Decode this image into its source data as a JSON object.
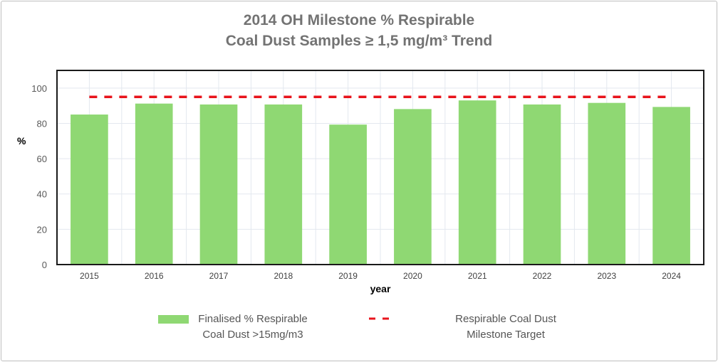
{
  "chart_data": {
    "type": "bar",
    "title_line1": "2014 OH Milestone % Respirable",
    "title_line2": "Coal Dust Samples ≥ 1,5 mg/m³ Trend",
    "xlabel": "year",
    "ylabel": "%",
    "categories": [
      "2015",
      "2016",
      "2017",
      "2018",
      "2019",
      "2020",
      "2021",
      "2022",
      "2023",
      "2024"
    ],
    "series": [
      {
        "name_line1": "Finalised % Respirable",
        "name_line2": "Coal Dust >15mg/m3",
        "type": "bar",
        "color": "#8fd873",
        "values": [
          85,
          91.2,
          90.7,
          90.7,
          79.3,
          88.1,
          93,
          90.7,
          91.6,
          89.3
        ]
      },
      {
        "name_line1": "Respirable Coal Dust",
        "name_line2": "Milestone Target",
        "type": "line",
        "style": "dashed",
        "color": "#e8141c",
        "values": [
          95,
          95,
          95,
          95,
          95,
          95,
          95,
          95,
          95,
          95
        ]
      }
    ],
    "ylim": [
      0,
      110
    ],
    "yticks": [
      0,
      20,
      40,
      60,
      80,
      100
    ],
    "grid": true,
    "legend": "bottom"
  }
}
